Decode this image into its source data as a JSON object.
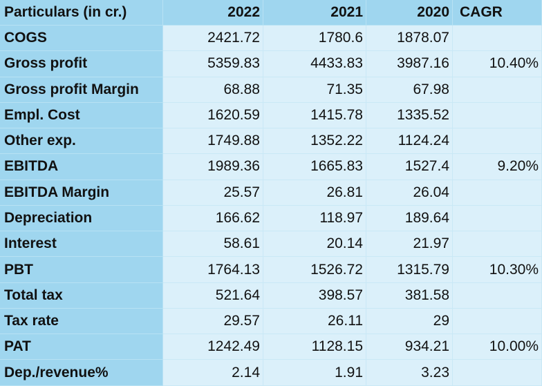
{
  "table": {
    "header": [
      "Particulars (in cr.)",
      "2022",
      "2021",
      "2020",
      "CAGR"
    ],
    "rows": [
      [
        "COGS",
        "2421.72",
        "1780.6",
        "1878.07"
      ],
      [
        "Gross profit",
        "5359.83",
        "4433.83",
        "3987.16",
        "10.40%"
      ],
      [
        "Gross profit Margin",
        "68.88",
        "71.35",
        "67.98"
      ],
      [
        "Empl. Cost",
        "1620.59",
        "1415.78",
        "1335.52"
      ],
      [
        "Other exp.",
        "1749.88",
        "1352.22",
        "1124.24"
      ],
      [
        "EBITDA",
        "1989.36",
        "1665.83",
        "1527.4",
        "9.20%"
      ],
      [
        "EBITDA Margin",
        "25.57",
        "26.81",
        "26.04"
      ],
      [
        "Depreciation",
        "166.62",
        "118.97",
        "189.64"
      ],
      [
        "Interest",
        "58.61",
        "20.14",
        "21.97"
      ],
      [
        "PBT",
        "1764.13",
        "1526.72",
        "1315.79",
        "10.30%"
      ],
      [
        "Total tax",
        "521.64",
        "398.57",
        "381.58"
      ],
      [
        "Tax rate",
        "29.57",
        "26.11",
        "29"
      ],
      [
        "PAT",
        "1242.49",
        "1128.15",
        "934.21",
        "10.00%"
      ],
      [
        "Dep./revenue%",
        "2.14",
        "1.91",
        "3.23"
      ]
    ]
  }
}
